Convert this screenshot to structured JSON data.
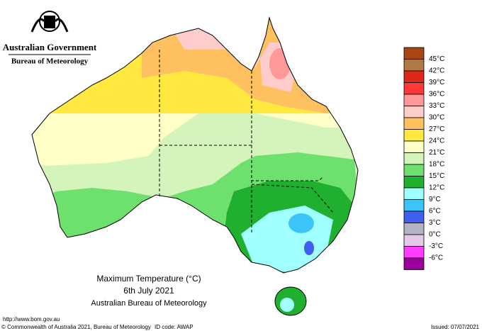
{
  "header": {
    "agency": "Australian Government",
    "bureau": "Bureau of Meteorology"
  },
  "map": {
    "title": "Maximum Temperature (°C)",
    "date": "6th July 2021",
    "source": "Australian Bureau of Meteorology"
  },
  "legend": {
    "labels": [
      "45°C",
      "42°C",
      "39°C",
      "36°C",
      "33°C",
      "30°C",
      "27°C",
      "24°C",
      "21°C",
      "18°C",
      "15°C",
      "12°C",
      "9°C",
      "6°C",
      "3°C",
      "0°C",
      "-3°C",
      "-6°C"
    ],
    "colors": [
      "#a84614",
      "#b07a48",
      "#e02818",
      "#ff3838",
      "#ff9898",
      "#ffcccc",
      "#ffc060",
      "#ffe840",
      "#ffffc8",
      "#d4f4bc",
      "#6ee06e",
      "#1eb02e",
      "#a0ffff",
      "#3cc4f8",
      "#4060f0",
      "#b4b4c4",
      "#e4c8e8",
      "#ff3cff",
      "#9c009c"
    ]
  },
  "footer": {
    "url": "http://www.bom.gov.au",
    "copyright": "© Commonwealth of Australia 2021, Bureau of Meteorology",
    "id_code": "ID code: AWAP",
    "issued": "Issued: 07/07/2021"
  }
}
